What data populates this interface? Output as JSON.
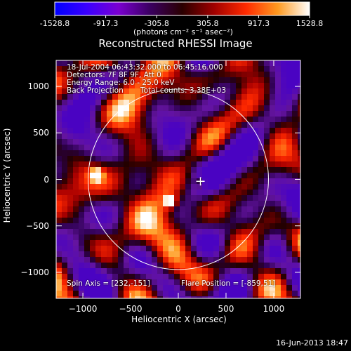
{
  "colorbar": {
    "ticks": [
      "-1528.8",
      "-917.3",
      "-305.8",
      "305.8",
      "917.3",
      "1528.8"
    ],
    "units": "(photons cm⁻² s⁻¹ asec⁻²)",
    "colors": [
      "#0000ff",
      "#3a00ff",
      "#7a00d0",
      "#3a0060",
      "#2a0000",
      "#a00000",
      "#ff2a00",
      "#ff9a20",
      "#ffffff"
    ]
  },
  "header": {
    "title": "Reconstructed RHESSI Image",
    "line1": "18-Jul-2004 06:43:32.000 to 06:45:16.000",
    "line2": "Detectors: 7F 8F 9F, Att 0",
    "line3": "Energy Range: 6.0 - 25.0 keV",
    "line4a": "Back Projection",
    "line4b": "Total counts: 3.38E+03"
  },
  "footer": {
    "spin_axis": "Spin Axis = [232,-151]",
    "flare_position": "Flare Position = [-859,51]"
  },
  "timestamp": "16-Jun-2013 18:47",
  "chart_data": {
    "type": "heatmap",
    "title": "Reconstructed RHESSI Image",
    "xlabel": "Heliocentric X (arcsec)",
    "ylabel": "Heliocentric Y (arcsec)",
    "xlim": [
      -1280,
      1280
    ],
    "ylim": [
      -1280,
      1280
    ],
    "x_ticks": [
      -1000,
      -500,
      0,
      500,
      1000
    ],
    "y_ticks": [
      -1000,
      -500,
      0,
      500,
      1000
    ],
    "solar_radius_arcsec": 945,
    "spin_axis": [
      232,
      -151
    ],
    "flare_position": [
      -859,
      51
    ],
    "value_range": [
      -1528.8,
      1528.8
    ],
    "bright_sources": [
      {
        "x": -859,
        "y": 51,
        "level": 1.0
      },
      {
        "x": -90,
        "y": -235,
        "level": 0.9
      },
      {
        "x": 232,
        "y": -30,
        "level": 0.6
      }
    ]
  }
}
